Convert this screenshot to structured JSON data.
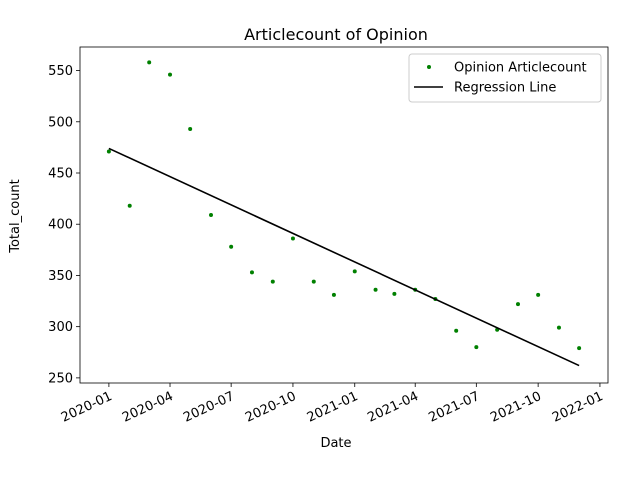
{
  "chart_data": {
    "type": "scatter",
    "title": "Articlecount of Opinion",
    "xlabel": "Date",
    "ylabel": "Total_count",
    "x_ticks": [
      "2020-01",
      "2020-04",
      "2020-07",
      "2020-10",
      "2021-01",
      "2021-04",
      "2021-07",
      "2021-10",
      "2022-01"
    ],
    "y_ticks": [
      250,
      300,
      350,
      400,
      450,
      500,
      550
    ],
    "xlim": [
      "2019-11-19",
      "2022-01-13"
    ],
    "ylim": [
      245,
      573
    ],
    "grid": false,
    "legend_position": "top-right",
    "series": [
      {
        "name": "Opinion Articlecount",
        "kind": "scatter",
        "color": "#008000",
        "points": [
          {
            "x": "2020-01-01",
            "y": 471
          },
          {
            "x": "2020-02-01",
            "y": 418
          },
          {
            "x": "2020-03-01",
            "y": 558
          },
          {
            "x": "2020-04-01",
            "y": 546
          },
          {
            "x": "2020-05-01",
            "y": 493
          },
          {
            "x": "2020-06-01",
            "y": 409
          },
          {
            "x": "2020-07-01",
            "y": 378
          },
          {
            "x": "2020-08-01",
            "y": 353
          },
          {
            "x": "2020-09-01",
            "y": 344
          },
          {
            "x": "2020-10-01",
            "y": 386
          },
          {
            "x": "2020-11-01",
            "y": 344
          },
          {
            "x": "2020-12-01",
            "y": 331
          },
          {
            "x": "2021-01-01",
            "y": 354
          },
          {
            "x": "2021-02-01",
            "y": 336
          },
          {
            "x": "2021-03-01",
            "y": 332
          },
          {
            "x": "2021-04-01",
            "y": 336
          },
          {
            "x": "2021-05-01",
            "y": 327
          },
          {
            "x": "2021-06-01",
            "y": 296
          },
          {
            "x": "2021-07-01",
            "y": 280
          },
          {
            "x": "2021-08-01",
            "y": 297
          },
          {
            "x": "2021-09-01",
            "y": 322
          },
          {
            "x": "2021-10-01",
            "y": 331
          },
          {
            "x": "2021-11-01",
            "y": 299
          },
          {
            "x": "2021-12-01",
            "y": 279
          }
        ]
      },
      {
        "name": "Regression Line",
        "kind": "line",
        "color": "#000000",
        "points": [
          {
            "x": "2020-01-01",
            "y": 474
          },
          {
            "x": "2021-12-01",
            "y": 262
          }
        ]
      }
    ]
  }
}
